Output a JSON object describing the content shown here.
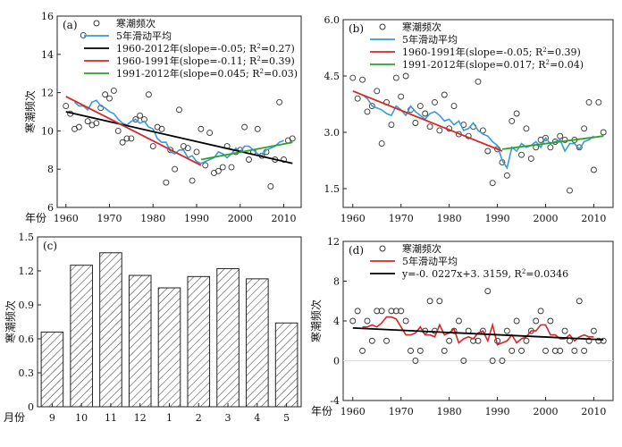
{
  "chart_data": [
    {
      "panel": "(a)",
      "type": "scatter",
      "ylabel": "寒潮频次",
      "xlabel": "年份",
      "xlim": [
        1958,
        2014
      ],
      "ylim": [
        6,
        16
      ],
      "xticks": [
        1960,
        1970,
        1980,
        1990,
        2000,
        2010
      ],
      "yticks": [
        6,
        8,
        10,
        12,
        14,
        16
      ],
      "legend": [
        "寒潮频次",
        "5年滑动平均",
        "1960-2012年(slope=-0.05; R²=0.27)",
        "1960-1991年(slope=-0.11; R²=0.39)",
        "1991-2012年(slope=0.045; R²=0.03)"
      ],
      "legend_placement": "top-right",
      "series": [
        {
          "kind": "points",
          "x": [
            1960,
            1961,
            1962,
            1963,
            1964,
            1965,
            1966,
            1967,
            1968,
            1969,
            1970,
            1971,
            1972,
            1973,
            1974,
            1975,
            1976,
            1977,
            1978,
            1979,
            1980,
            1981,
            1982,
            1983,
            1984,
            1985,
            1986,
            1987,
            1988,
            1989,
            1990,
            1991,
            1992,
            1993,
            1994,
            1995,
            1996,
            1997,
            1998,
            1999,
            2000,
            2001,
            2002,
            2003,
            2004,
            2005,
            2006,
            2007,
            2008,
            2009,
            2010,
            2011,
            2012
          ],
          "y": [
            11.3,
            10.9,
            10.1,
            10.2,
            15.0,
            10.5,
            10.3,
            10.4,
            11.2,
            11.9,
            11.7,
            12.1,
            10.0,
            9.4,
            9.6,
            9.6,
            10.6,
            10.8,
            10.6,
            11.9,
            9.2,
            10.2,
            10.1,
            7.3,
            9.0,
            8.0,
            11.1,
            9.2,
            9.1,
            7.4,
            8.9,
            10.1,
            8.2,
            9.9,
            7.8,
            7.9,
            8.1,
            9.2,
            8.1,
            8.9,
            9.0,
            10.2,
            8.5,
            8.9,
            10.1,
            8.7,
            8.9,
            7.1,
            8.5,
            11.5,
            8.5,
            9.5,
            9.6
          ]
        },
        {
          "kind": "line",
          "name": "5年滑动平均",
          "color": "#3a9ad9",
          "x": [
            1962,
            1963,
            1964,
            1965,
            1966,
            1967,
            1968,
            1969,
            1970,
            1971,
            1972,
            1973,
            1974,
            1975,
            1976,
            1977,
            1978,
            1979,
            1980,
            1981,
            1982,
            1983,
            1984,
            1985,
            1986,
            1987,
            1988,
            1989,
            1990,
            1991,
            1992,
            1993,
            1994,
            1995,
            1996,
            1997,
            1998,
            1999,
            2000,
            2001,
            2002,
            2003,
            2004,
            2005,
            2006,
            2007,
            2008,
            2009,
            2010
          ],
          "y": [
            11.5,
            11.3,
            11.3,
            11.1,
            11.5,
            11.6,
            11.3,
            11.2,
            11.0,
            10.9,
            10.6,
            10.4,
            10.3,
            10.5,
            10.6,
            10.4,
            10.5,
            10.2,
            10.1,
            9.6,
            9.4,
            9.4,
            8.9,
            8.8,
            9.0,
            9.0,
            8.6,
            8.7,
            8.4,
            8.3,
            8.4,
            8.5,
            8.6,
            8.9,
            8.8,
            8.6,
            8.8,
            9.1,
            8.9,
            9.2,
            9.2,
            9.0,
            8.8,
            8.7,
            9.0,
            9.1,
            9.2,
            9.4,
            9.5
          ]
        },
        {
          "kind": "trend",
          "name": "1960-2012年",
          "color": "#000000",
          "x": [
            1960,
            2012
          ],
          "y": [
            11.0,
            8.3
          ]
        },
        {
          "kind": "trend",
          "name": "1960-1991年",
          "color": "#d62728",
          "x": [
            1960,
            1991
          ],
          "y": [
            11.8,
            8.2
          ]
        },
        {
          "kind": "trend",
          "name": "1991-2012年",
          "color": "#2ca02c",
          "x": [
            1991,
            2012
          ],
          "y": [
            8.5,
            9.4
          ]
        }
      ]
    },
    {
      "panel": "(b)",
      "type": "scatter",
      "ylabel": "",
      "xlabel": "",
      "xlim": [
        1958,
        2014
      ],
      "ylim": [
        1.0,
        6.0
      ],
      "xticks": [
        1960,
        1970,
        1980,
        1990,
        2000,
        2010
      ],
      "yticks": [
        "1.5",
        "3.0",
        "4.5",
        "6.0"
      ],
      "legend": [
        "寒潮频次",
        "5年滑动平均",
        "1960-1991年(slope=-0.05; R²=0.39)",
        "1991-2012年(slope=0.017; R²=0.04)"
      ],
      "legend_placement": "top-right",
      "series": [
        {
          "kind": "points",
          "x": [
            1960,
            1961,
            1962,
            1963,
            1964,
            1965,
            1966,
            1967,
            1968,
            1969,
            1970,
            1971,
            1972,
            1973,
            1974,
            1975,
            1976,
            1977,
            1978,
            1979,
            1980,
            1981,
            1982,
            1983,
            1984,
            1985,
            1986,
            1987,
            1988,
            1989,
            1990,
            1991,
            1992,
            1993,
            1994,
            1995,
            1996,
            1997,
            1998,
            1999,
            2000,
            2001,
            2002,
            2003,
            2004,
            2005,
            2006,
            2007,
            2008,
            2009,
            2010,
            2011,
            2012
          ],
          "y": [
            4.45,
            3.9,
            4.4,
            3.55,
            3.7,
            4.1,
            2.7,
            3.8,
            3.2,
            4.45,
            3.95,
            4.5,
            3.6,
            3.25,
            3.7,
            3.5,
            3.15,
            3.8,
            3.05,
            4.0,
            3.1,
            3.7,
            2.95,
            3.2,
            2.9,
            3.15,
            4.35,
            3.05,
            2.5,
            1.65,
            2.55,
            2.2,
            1.85,
            3.3,
            3.5,
            2.4,
            3.1,
            2.3,
            2.6,
            2.8,
            2.85,
            2.6,
            2.75,
            2.9,
            2.8,
            1.45,
            2.8,
            2.6,
            3.1,
            3.8,
            2.0,
            3.8,
            3.0
          ]
        },
        {
          "kind": "line",
          "name": "5年滑动平均",
          "color": "#3a9ad9",
          "x": [
            1962,
            1963,
            1964,
            1965,
            1966,
            1967,
            1968,
            1969,
            1970,
            1971,
            1972,
            1973,
            1974,
            1975,
            1976,
            1977,
            1978,
            1979,
            1980,
            1981,
            1982,
            1983,
            1984,
            1985,
            1986,
            1987,
            1988,
            1989,
            1990,
            1991,
            1992,
            1993,
            1994,
            1995,
            1996,
            1997,
            1998,
            1999,
            2000,
            2001,
            2002,
            2003,
            2004,
            2005,
            2006,
            2007,
            2008,
            2009,
            2010
          ],
          "y": [
            4.0,
            3.9,
            3.7,
            3.65,
            3.6,
            3.5,
            3.45,
            3.7,
            3.6,
            3.45,
            3.7,
            3.55,
            3.45,
            3.35,
            3.5,
            3.55,
            3.45,
            3.3,
            3.35,
            3.2,
            3.3,
            3.05,
            3.1,
            3.25,
            3.05,
            2.95,
            2.9,
            2.75,
            2.65,
            2.25,
            2.05,
            2.6,
            2.5,
            2.7,
            2.6,
            2.65,
            2.75,
            2.6,
            2.85,
            2.7,
            2.75,
            2.8,
            2.5,
            2.7,
            2.7,
            2.55,
            2.75,
            2.8,
            2.9
          ]
        },
        {
          "kind": "trend",
          "name": "1960-1991年",
          "color": "#d62728",
          "x": [
            1960,
            1991
          ],
          "y": [
            4.1,
            2.5
          ]
        },
        {
          "kind": "trend",
          "name": "1991-2012年",
          "color": "#2ca02c",
          "x": [
            1991,
            2012
          ],
          "y": [
            2.55,
            2.9
          ]
        }
      ]
    },
    {
      "panel": "(c)",
      "type": "bar",
      "ylabel": "寒潮频次",
      "xlabel": "月份",
      "ylim": [
        0,
        1.5
      ],
      "yticks": [
        "0",
        "0.3",
        "0.6",
        "0.9",
        "1.2",
        "1.5"
      ],
      "categories": [
        "9",
        "10",
        "11",
        "12",
        "1",
        "2",
        "3",
        "4",
        "5"
      ],
      "values": [
        0.66,
        1.25,
        1.36,
        1.16,
        1.05,
        1.15,
        1.22,
        1.13,
        0.74
      ]
    },
    {
      "panel": "(d)",
      "type": "scatter",
      "ylabel": "寒潮频次",
      "xlabel": "年份",
      "xlim": [
        1958,
        2014
      ],
      "ylim": [
        -4,
        12
      ],
      "xticks": [
        1960,
        1970,
        1980,
        1990,
        2000,
        2010
      ],
      "yticks": [
        -4,
        0,
        4,
        8,
        12
      ],
      "legend": [
        "寒潮频次",
        "5年滑动平均",
        "y=-0. 0227x+3. 3159, R²=0.0346"
      ],
      "legend_placement": "top-right",
      "series": [
        {
          "kind": "points",
          "x": [
            1960,
            1961,
            1962,
            1963,
            1964,
            1965,
            1966,
            1967,
            1968,
            1969,
            1970,
            1971,
            1972,
            1973,
            1974,
            1975,
            1976,
            1977,
            1978,
            1979,
            1980,
            1981,
            1982,
            1983,
            1984,
            1985,
            1986,
            1987,
            1988,
            1989,
            1990,
            1991,
            1992,
            1993,
            1994,
            1995,
            1996,
            1997,
            1998,
            1999,
            2000,
            2001,
            2002,
            2003,
            2004,
            2005,
            2006,
            2007,
            2008,
            2009,
            2010,
            2011,
            2012
          ],
          "y": [
            4,
            5,
            1,
            4,
            2,
            5,
            5,
            2,
            5,
            5,
            5,
            4,
            1,
            0,
            1,
            3,
            6,
            3,
            6,
            1,
            2,
            3,
            4,
            0,
            3,
            2,
            2,
            3,
            7,
            0,
            2,
            0,
            3,
            1,
            4,
            1,
            2,
            3,
            4,
            5,
            1,
            4,
            1,
            1,
            3,
            2,
            1,
            6,
            1,
            2,
            3,
            2,
            2
          ]
        },
        {
          "kind": "line",
          "name": "5年滑动平均",
          "color": "#d62728",
          "x": [
            1962,
            1963,
            1964,
            1965,
            1966,
            1967,
            1968,
            1969,
            1970,
            1971,
            1972,
            1973,
            1974,
            1975,
            1976,
            1977,
            1978,
            1979,
            1980,
            1981,
            1982,
            1983,
            1984,
            1985,
            1986,
            1987,
            1988,
            1989,
            1990,
            1991,
            1992,
            1993,
            1994,
            1995,
            1996,
            1997,
            1998,
            1999,
            2000,
            2001,
            2002,
            2003,
            2004,
            2005,
            2006,
            2007,
            2008,
            2009,
            2010
          ],
          "y": [
            3.4,
            3.4,
            3.6,
            3.4,
            3.8,
            4.4,
            4.4,
            4.2,
            3.4,
            2.6,
            2.6,
            2.8,
            3.4,
            2.6,
            2.6,
            2.4,
            3.6,
            2.6,
            2.8,
            3.2,
            1.8,
            2.2,
            2.4,
            2.2,
            2.8,
            3.0,
            2.0,
            3.6,
            1.6,
            1.8,
            2.0,
            2.6,
            1.8,
            2.2,
            2.4,
            3.0,
            3.0,
            3.6,
            3.6,
            2.6,
            2.6,
            2.2,
            2.2,
            2.6,
            2.0,
            2.4,
            2.6,
            2.4,
            2.4
          ]
        },
        {
          "kind": "trend",
          "name": "y=-0. 0227x+3. 3159",
          "color": "#000000",
          "x": [
            1960,
            2012
          ],
          "y": [
            3.29,
            2.11
          ]
        }
      ]
    }
  ]
}
